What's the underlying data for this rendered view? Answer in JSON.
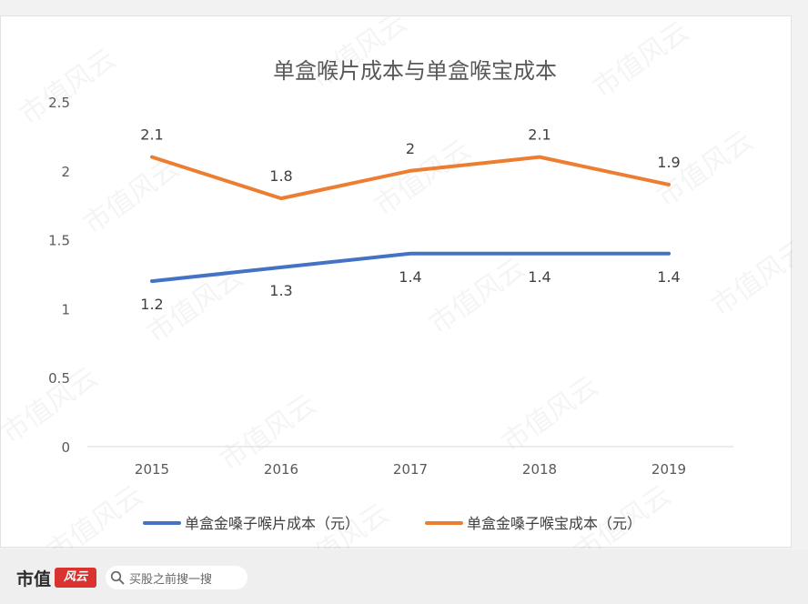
{
  "chart_data": {
    "type": "line",
    "title": "单盒喉片成本与单盒喉宝成本",
    "categories": [
      "2015",
      "2016",
      "2017",
      "2018",
      "2019"
    ],
    "ylim": [
      0,
      2.5
    ],
    "yticks": [
      "0",
      "0.5",
      "1",
      "1.5",
      "2",
      "2.5"
    ],
    "grid": false,
    "legend": "bottom",
    "series": [
      {
        "name": "单盒金嗓子喉片成本（元）",
        "values": [
          1.2,
          1.3,
          1.4,
          1.4,
          1.4
        ],
        "labels": [
          "1.2",
          "1.3",
          "1.4",
          "1.4",
          "1.4"
        ],
        "color": "#4472c4",
        "label_position": "below"
      },
      {
        "name": "单盒金嗓子喉宝成本（元）",
        "values": [
          2.1,
          1.8,
          2.0,
          2.1,
          1.9
        ],
        "labels": [
          "2.1",
          "1.8",
          "2",
          "2.1",
          "1.9"
        ],
        "color": "#ed7d31",
        "label_position": "above"
      }
    ]
  },
  "watermark": "市值风云",
  "footer": {
    "brand": "市值",
    "brand_badge": "风云",
    "search_placeholder": "买股之前搜一搜",
    "search_icon": "search-icon"
  }
}
